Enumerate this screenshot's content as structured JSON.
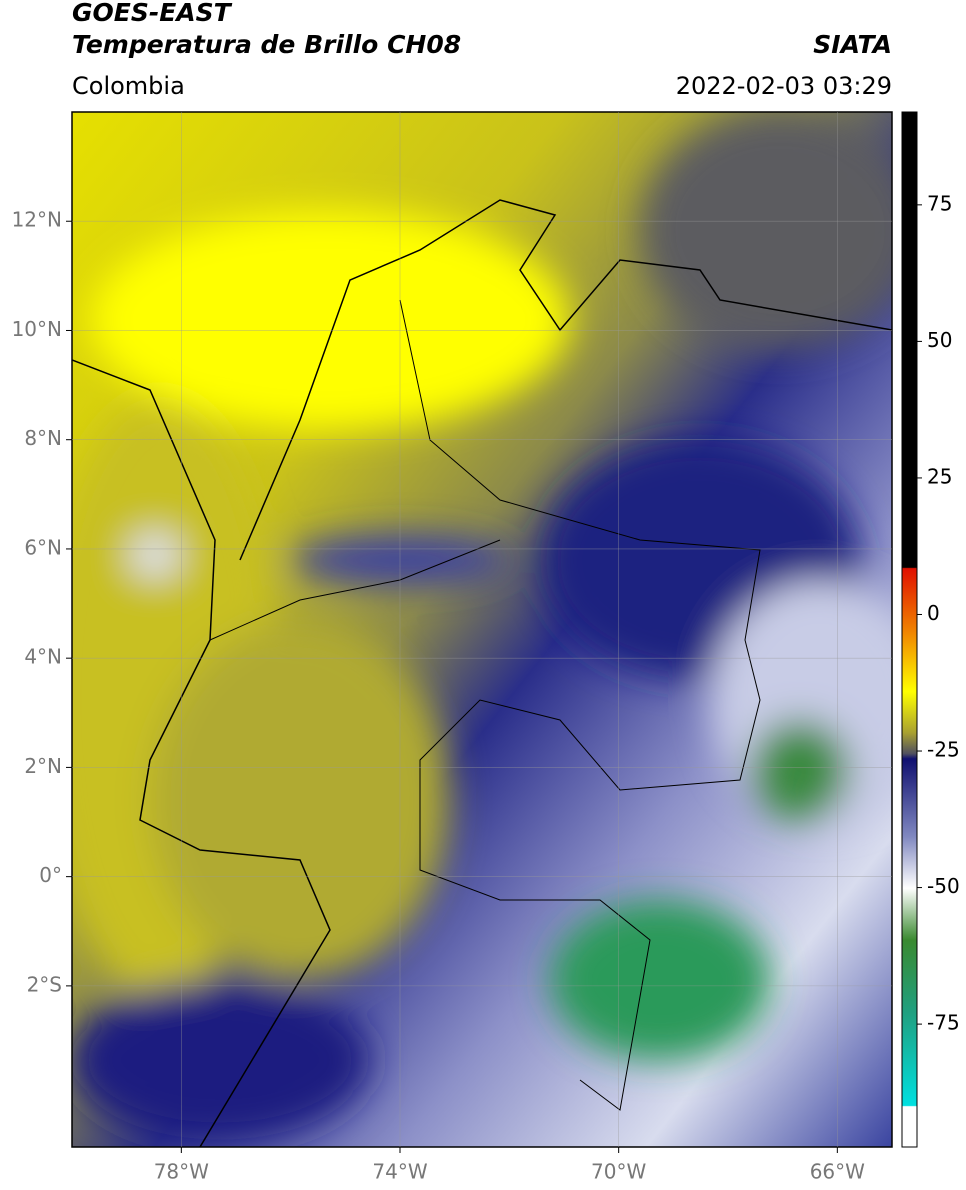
{
  "header": {
    "title1": "GOES-EAST",
    "title2": "Temperatura de Brillo CH08",
    "region": "Colombia",
    "source": "SIATA",
    "datetime": "2022-02-03 03:29"
  },
  "map": {
    "xlim": [
      -80,
      -65
    ],
    "ylim": [
      -4.95,
      14
    ],
    "xticks": [
      {
        "value": -78,
        "label": "78°W"
      },
      {
        "value": -74,
        "label": "74°W"
      },
      {
        "value": -70,
        "label": "70°W"
      },
      {
        "value": -66,
        "label": "66°W"
      }
    ],
    "yticks": [
      {
        "value": 12,
        "label": "12°N"
      },
      {
        "value": 10,
        "label": "10°N"
      },
      {
        "value": 8,
        "label": "8°N"
      },
      {
        "value": 6,
        "label": "6°N"
      },
      {
        "value": 4,
        "label": "4°N"
      },
      {
        "value": 2,
        "label": "2°N"
      },
      {
        "value": 0,
        "label": "0°"
      },
      {
        "value": -2,
        "label": "2°S"
      }
    ]
  },
  "colorbar": {
    "lim": [
      -97.5,
      92
    ],
    "ticks": [
      75,
      50,
      25,
      0,
      -25,
      -50,
      -75
    ]
  }
}
